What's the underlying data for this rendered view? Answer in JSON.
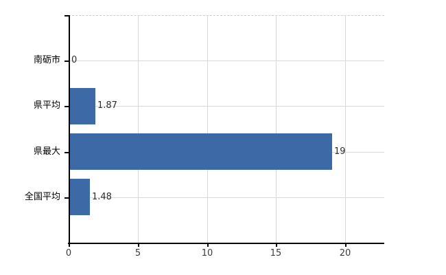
{
  "chart_data": {
    "type": "bar",
    "orientation": "horizontal",
    "title": "",
    "xlabel": "",
    "ylabel": "",
    "categories": [
      "南砺市",
      "県平均",
      "県最大",
      "全国平均"
    ],
    "values": [
      0,
      1.87,
      19,
      1.48
    ],
    "value_labels": [
      "0",
      "1.87",
      "19",
      "1.48"
    ],
    "x_ticks": [
      0,
      5,
      10,
      15,
      20
    ],
    "xlim": [
      0,
      22.8
    ],
    "grid": true,
    "legend": false,
    "colors": {
      "bar": "#3d69a6",
      "gridline": "#d9d9d9",
      "plot_border": "#c9cfc9",
      "axis": "#000000",
      "category_label": "#000000",
      "value_label": "#2b2b2b",
      "tick_label": "#3a3a3a",
      "background": "#ffffff"
    }
  }
}
